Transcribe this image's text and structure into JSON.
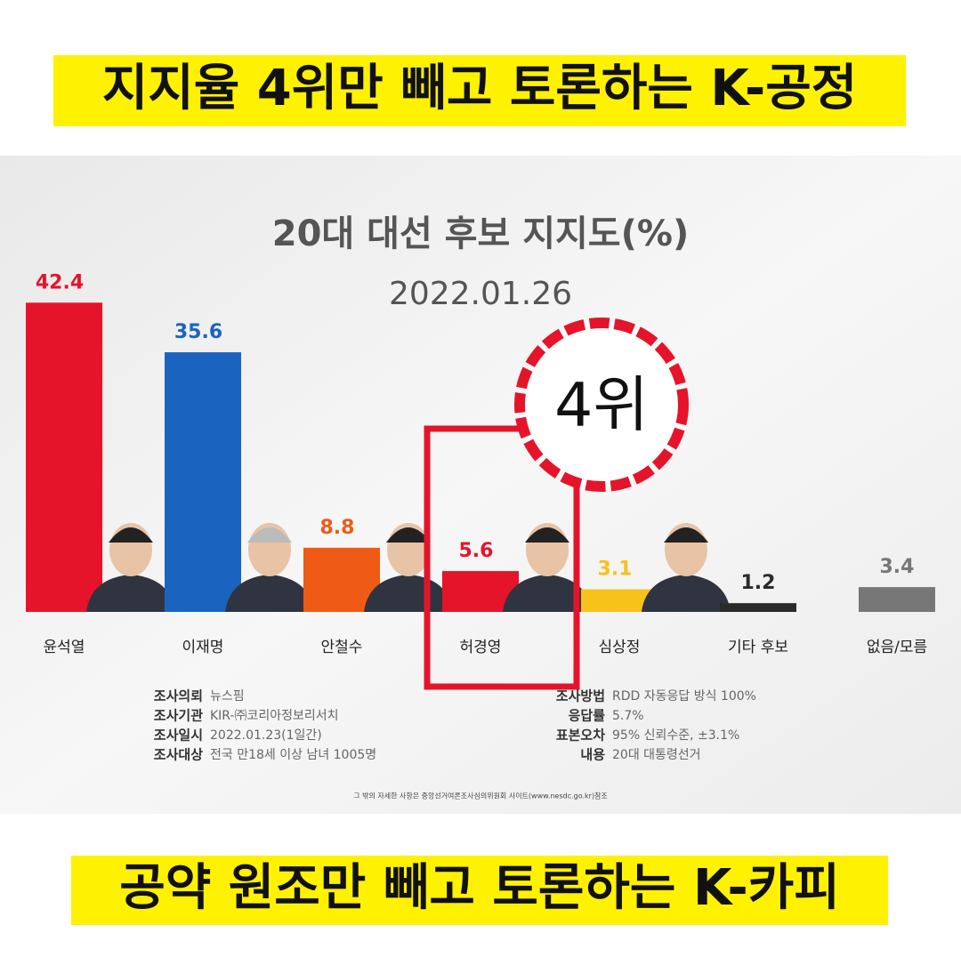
{
  "header": {
    "title": "지지율 4위만 빼고 토론하는 K-공정"
  },
  "footer": {
    "title": "공약 원조만 빼고 토론하는 K-카피"
  },
  "chart_data": {
    "type": "bar",
    "title": "20대 대선 후보 지지도(%)",
    "subtitle": "2022.01.26",
    "categories": [
      "윤석열",
      "이재명",
      "안철수",
      "허경영",
      "심상정",
      "기타 후보",
      "없음/모름"
    ],
    "values": [
      42.4,
      35.6,
      8.8,
      5.6,
      3.1,
      1.2,
      3.4
    ],
    "colors": [
      "#e5142a",
      "#1a64c0",
      "#ef5a16",
      "#e5142a",
      "#f7c21a",
      "#2b2b2b",
      "#777777"
    ],
    "annotation": "4위",
    "notes_left": [
      [
        "조사의뢰",
        "뉴스핌"
      ],
      [
        "조사기관",
        "KIR-㈜코리아정보리서치"
      ],
      [
        "조사일시",
        "2022.01.23(1일간)"
      ],
      [
        "조사대상",
        "전국 만18세 이상 남녀 1005명"
      ]
    ],
    "notes_right": [
      [
        "조사방법",
        "RDD 자동응답 방식 100%"
      ],
      [
        "응답률",
        "5.7%"
      ],
      [
        "표본오차",
        "95% 신뢰수준, ±3.1%"
      ],
      [
        "내용",
        "20대 대통령선거"
      ]
    ],
    "source": "그 밖의 자세한 사항은 중앙선거여론조사심의위원회 사이트(www.nesdc.go.kr)참조"
  }
}
